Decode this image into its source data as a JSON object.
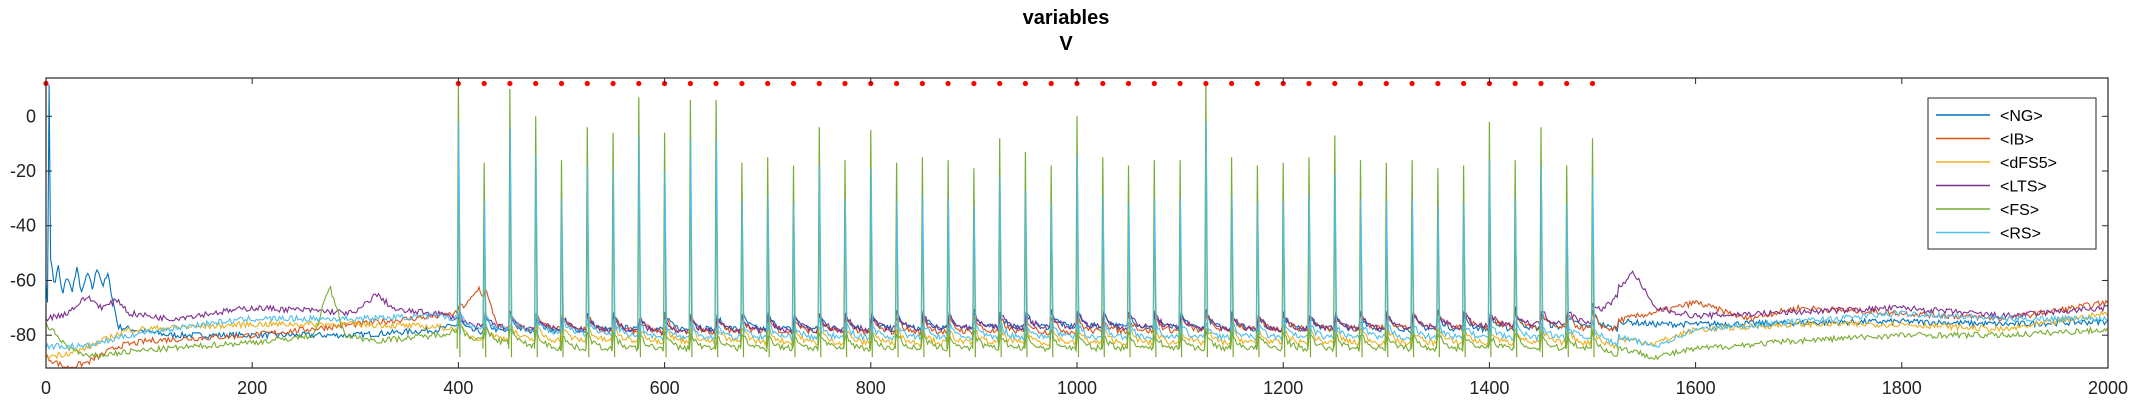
{
  "chart_data": {
    "type": "line",
    "title": "variables",
    "subtitle": "V",
    "xlabel": "",
    "ylabel": "",
    "xlim": [
      0,
      2000
    ],
    "ylim": [
      -92,
      14
    ],
    "x_ticks": [
      0,
      200,
      400,
      600,
      800,
      1000,
      1200,
      1400,
      1600,
      1800,
      2000
    ],
    "y_ticks": [
      0,
      -20,
      -40,
      -60,
      -80
    ],
    "x_tick_labels": [
      "0",
      "200",
      "400",
      "600",
      "800",
      "1000",
      "1200",
      "1400",
      "1600",
      "1800",
      "2000"
    ],
    "y_tick_labels": [
      "0",
      "-20",
      "-40",
      "-60",
      "-80"
    ],
    "grid": false,
    "legend_position": "top-right",
    "stimulus_marker": {
      "color": "#ff0000",
      "value": 12,
      "start": 400,
      "end": 1500,
      "spacing": 25,
      "single_at": 0
    },
    "spike_train": {
      "start": 400,
      "period": 25,
      "count": 45,
      "peaks": [
        12,
        -17,
        10,
        0,
        -16,
        -4,
        -6,
        7,
        -6,
        6,
        6,
        -17,
        -15,
        -18,
        -4,
        -16,
        -5,
        -17,
        -15,
        -16,
        -19,
        -8,
        -13,
        -18,
        0,
        -15,
        -18,
        -16,
        -16,
        12,
        -15,
        -18,
        -17,
        -15,
        -7,
        -16,
        -17,
        -16,
        -19,
        -18,
        -2,
        -16,
        -4,
        -18,
        -8
      ]
    },
    "series": [
      {
        "name": "<NG>",
        "color": "#0072bd",
        "points": [
          [
            0,
            -60
          ],
          [
            2,
            -72
          ],
          [
            3,
            12
          ],
          [
            4,
            -50
          ],
          [
            8,
            -62
          ],
          [
            12,
            -55
          ],
          [
            16,
            -66
          ],
          [
            20,
            -58
          ],
          [
            25,
            -64
          ],
          [
            30,
            -56
          ],
          [
            35,
            -65
          ],
          [
            40,
            -57
          ],
          [
            45,
            -63
          ],
          [
            50,
            -55
          ],
          [
            55,
            -62
          ],
          [
            60,
            -58
          ],
          [
            70,
            -77
          ],
          [
            120,
            -80
          ],
          [
            200,
            -80
          ],
          [
            300,
            -80
          ],
          [
            380,
            -78
          ],
          [
            400,
            -76
          ],
          [
            600,
            -75
          ],
          [
            800,
            -75
          ],
          [
            1000,
            -74
          ],
          [
            1200,
            -75
          ],
          [
            1400,
            -75
          ],
          [
            1500,
            -74
          ],
          [
            1560,
            -76
          ],
          [
            1600,
            -76
          ],
          [
            1800,
            -75
          ],
          [
            1900,
            -76
          ],
          [
            2000,
            -75
          ]
        ]
      },
      {
        "name": "<IB>",
        "color": "#d95319",
        "points": [
          [
            0,
            -88
          ],
          [
            20,
            -92
          ],
          [
            40,
            -90
          ],
          [
            70,
            -84
          ],
          [
            100,
            -82
          ],
          [
            200,
            -80
          ],
          [
            300,
            -76
          ],
          [
            380,
            -73
          ],
          [
            400,
            -72
          ],
          [
            420,
            -60
          ],
          [
            440,
            -75
          ],
          [
            500,
            -75
          ],
          [
            600,
            -76
          ],
          [
            800,
            -76
          ],
          [
            1000,
            -76
          ],
          [
            1200,
            -75
          ],
          [
            1400,
            -74
          ],
          [
            1520,
            -75
          ],
          [
            1580,
            -70
          ],
          [
            1600,
            -68
          ],
          [
            1650,
            -74
          ],
          [
            1700,
            -70
          ],
          [
            1800,
            -72
          ],
          [
            1900,
            -74
          ],
          [
            2000,
            -68
          ]
        ]
      },
      {
        "name": "<dFS5>",
        "color": "#edb120",
        "points": [
          [
            0,
            -88
          ],
          [
            30,
            -86
          ],
          [
            80,
            -78
          ],
          [
            200,
            -76
          ],
          [
            300,
            -76
          ],
          [
            380,
            -77
          ],
          [
            400,
            -78
          ],
          [
            500,
            -79
          ],
          [
            800,
            -80
          ],
          [
            1200,
            -80
          ],
          [
            1500,
            -80
          ],
          [
            1560,
            -83
          ],
          [
            1600,
            -78
          ],
          [
            1700,
            -76
          ],
          [
            1800,
            -76
          ],
          [
            1900,
            -78
          ],
          [
            2000,
            -72
          ]
        ]
      },
      {
        "name": "<LTS>",
        "color": "#7e2f8e",
        "points": [
          [
            0,
            -74
          ],
          [
            20,
            -72
          ],
          [
            40,
            -66
          ],
          [
            55,
            -70
          ],
          [
            70,
            -67
          ],
          [
            80,
            -72
          ],
          [
            120,
            -74
          ],
          [
            200,
            -70
          ],
          [
            260,
            -71
          ],
          [
            300,
            -72
          ],
          [
            320,
            -65
          ],
          [
            340,
            -71
          ],
          [
            380,
            -72
          ],
          [
            400,
            -74
          ],
          [
            600,
            -76
          ],
          [
            800,
            -75
          ],
          [
            1000,
            -74
          ],
          [
            1200,
            -75
          ],
          [
            1400,
            -74
          ],
          [
            1500,
            -72
          ],
          [
            1540,
            -57
          ],
          [
            1560,
            -70
          ],
          [
            1600,
            -73
          ],
          [
            1800,
            -70
          ],
          [
            1900,
            -73
          ],
          [
            2000,
            -70
          ]
        ]
      },
      {
        "name": "<FS>",
        "color": "#77ac30",
        "points": [
          [
            0,
            -76
          ],
          [
            20,
            -84
          ],
          [
            40,
            -88
          ],
          [
            80,
            -86
          ],
          [
            150,
            -84
          ],
          [
            220,
            -82
          ],
          [
            260,
            -80
          ],
          [
            275,
            -62
          ],
          [
            290,
            -80
          ],
          [
            320,
            -82
          ],
          [
            380,
            -80
          ],
          [
            400,
            -78
          ],
          [
            500,
            -82
          ],
          [
            800,
            -82
          ],
          [
            1200,
            -82
          ],
          [
            1500,
            -82
          ],
          [
            1560,
            -88
          ],
          [
            1600,
            -85
          ],
          [
            1700,
            -82
          ],
          [
            1800,
            -80
          ],
          [
            1900,
            -80
          ],
          [
            2000,
            -78
          ]
        ]
      },
      {
        "name": "<RS>",
        "color": "#4dbeee",
        "points": [
          [
            0,
            -84
          ],
          [
            40,
            -84
          ],
          [
            80,
            -80
          ],
          [
            150,
            -76
          ],
          [
            200,
            -74
          ],
          [
            300,
            -74
          ],
          [
            380,
            -73
          ],
          [
            400,
            -74
          ],
          [
            600,
            -78
          ],
          [
            800,
            -78
          ],
          [
            1000,
            -78
          ],
          [
            1200,
            -78
          ],
          [
            1400,
            -78
          ],
          [
            1500,
            -78
          ],
          [
            1560,
            -84
          ],
          [
            1600,
            -78
          ],
          [
            1700,
            -75
          ],
          [
            1800,
            -72
          ],
          [
            1900,
            -74
          ],
          [
            2000,
            -74
          ]
        ]
      }
    ]
  }
}
